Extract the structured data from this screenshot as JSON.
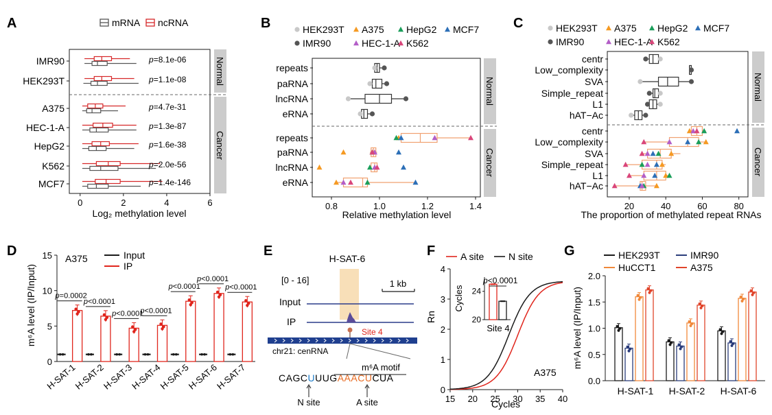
{
  "panel_letters": {
    "a": "A",
    "b": "B",
    "c": "C",
    "d": "D",
    "e": "E",
    "f": "F",
    "g": "G"
  },
  "colors": {
    "mrna": "#555555",
    "ncrna": "#d62728",
    "HEK293T": "#c8c8c8",
    "IMR90": "#555555",
    "A375": "#f59a23",
    "HEC-1-A": "#b35ec7",
    "HepG2": "#1a9e5a",
    "K562": "#d9467a",
    "MCF7": "#2c6fb7",
    "input": "#1a1a1a",
    "ip": "#e0251c",
    "a_site": "#e0251c",
    "n_site": "#1a1a1a",
    "HuCCT1": "#f0883a",
    "A375_g": "#e0442a",
    "IMR90_g": "#2a3c7a",
    "HEK293T_g": "#1a1a1a",
    "box_cancer": "#f0a070",
    "strip": "#cccccc",
    "highlight": "#f8dfb8",
    "track": "#2a3c8a"
  },
  "chart_data": [
    {
      "id": "A",
      "type": "box",
      "legend": [
        "mRNA",
        "ncRNA"
      ],
      "xlabel": "Log₂ methylation level",
      "xlim": [
        -0.5,
        6.0
      ],
      "xticks": [
        0,
        2,
        4,
        6
      ],
      "groups": [
        {
          "label": "Normal",
          "samples": [
            {
              "name": "IMR90",
              "p": "p=8.1e-06",
              "mrna": [
                0.2,
                0.55,
                0.8,
                1.25,
                2.6
              ],
              "ncrna": [
                0.2,
                0.65,
                1.0,
                1.45,
                2.3
              ]
            },
            {
              "name": "HEK293T",
              "p": "p=1.1e-08",
              "mrna": [
                0.15,
                0.5,
                0.8,
                1.25,
                2.7
              ],
              "ncrna": [
                0.2,
                0.65,
                1.0,
                1.45,
                2.5
              ]
            }
          ]
        },
        {
          "label": "Cancer",
          "samples": [
            {
              "name": "A375",
              "p": "p=4.7e-31",
              "mrna": [
                0.1,
                0.3,
                0.55,
                0.95,
                1.75
              ],
              "ncrna": [
                0.1,
                0.35,
                0.7,
                1.05,
                2.1
              ]
            },
            {
              "name": "HEC-1-A",
              "p": "p=1.3e-87",
              "mrna": [
                0.1,
                0.45,
                0.75,
                1.3,
                2.6
              ],
              "ncrna": [
                0.1,
                0.6,
                1.05,
                1.5,
                2.6
              ]
            },
            {
              "name": "HepG2",
              "p": "p=1.6e-38",
              "mrna": [
                0.1,
                0.4,
                0.75,
                1.2,
                2.5
              ],
              "ncrna": [
                0.1,
                0.55,
                0.95,
                1.35,
                2.7
              ]
            },
            {
              "name": "K562",
              "p": "p=2.0e-56",
              "mrna": [
                0.1,
                0.45,
                0.95,
                1.75,
                3.5
              ],
              "ncrna": [
                0.1,
                0.75,
                1.3,
                1.85,
                3.7
              ]
            },
            {
              "name": "MCF7",
              "p": "p=1.4e-146",
              "mrna": [
                0.1,
                0.35,
                0.75,
                1.3,
                2.8
              ],
              "ncrna": [
                0.1,
                0.7,
                1.2,
                1.85,
                3.8
              ]
            }
          ]
        }
      ]
    },
    {
      "id": "B",
      "type": "box+scatter",
      "legend": [
        "HEK293T",
        "A375",
        "HepG2",
        "MCF7",
        "IMR90",
        "HEC-1-A",
        "K562"
      ],
      "xlabel": "Relative methylation level",
      "xlim": [
        0.72,
        1.42
      ],
      "xticks": [
        0.8,
        1.0,
        1.2,
        1.4
      ],
      "groups": [
        {
          "label": "Normal",
          "categories": [
            "repeats",
            "paRNA",
            "lncRNA",
            "eRNA"
          ],
          "boxes": [
            [
              0.975,
              0.98,
              0.99,
              1.0,
              1.02
            ],
            [
              0.96,
              0.97,
              0.985,
              1.01,
              1.03
            ],
            [
              0.88,
              0.94,
              1.0,
              1.05,
              1.1
            ],
            [
              0.92,
              0.925,
              0.935,
              0.95,
              0.96
            ]
          ],
          "points": [
            {
              "HEK293T": 0.98,
              "IMR90": 1.02
            },
            {
              "HEK293T": 0.96,
              "IMR90": 1.03
            },
            {
              "HEK293T": 0.87,
              "IMR90": 1.11
            },
            {
              "HEK293T": 0.92,
              "IMR90": 0.97
            }
          ]
        },
        {
          "label": "Cancer",
          "categories": [
            "repeats",
            "paRNA",
            "lncRNA",
            "eRNA"
          ],
          "boxes": [
            [
              1.07,
              1.09,
              1.17,
              1.24,
              1.38
            ],
            [
              0.96,
              0.965,
              0.975,
              0.985,
              0.99
            ],
            [
              0.955,
              0.965,
              0.98,
              0.99,
              0.995
            ],
            [
              0.82,
              0.85,
              0.93,
              0.95,
              1.15
            ]
          ],
          "points": [
            {
              "A375": 1.08,
              "HepG2": 1.07,
              "MCF7": 1.09,
              "HEC-1-A": 1.23,
              "K562": 1.38
            },
            {
              "A375": 0.85,
              "HepG2": 0.97,
              "MCF7": 1.08,
              "HEC-1-A": 0.98,
              "K562": 0.97
            },
            {
              "A375": 0.75,
              "HepG2": 0.96,
              "MCF7": 1.1,
              "HEC-1-A": 0.98,
              "K562": 0.99
            },
            {
              "A375": 0.82,
              "HepG2": 0.95,
              "MCF7": 1.15,
              "HEC-1-A": 0.85,
              "K562": 0.88
            }
          ]
        }
      ]
    },
    {
      "id": "C",
      "type": "box+scatter",
      "legend": [
        "HEK293T",
        "A375",
        "HepG2",
        "MCF7",
        "IMR90",
        "HEC-1-A",
        "K562"
      ],
      "xlabel": "The proportion of methylated repeat RNAs",
      "xlim": [
        8,
        85
      ],
      "xticks": [
        20,
        40,
        60,
        80
      ],
      "groups": [
        {
          "label": "Normal",
          "categories": [
            "centr",
            "Low_complexity",
            "SVA",
            "Simple_repeat",
            "L1",
            "hAT−Ac"
          ],
          "boxes": [
            [
              30,
              31,
              33,
              36,
              38
            ],
            [
              53,
              53,
              53,
              54,
              54
            ],
            [
              26,
              36,
              41,
              47,
              54
            ],
            [
              31,
              33,
              34,
              36,
              38
            ],
            [
              30,
              31,
              33,
              35,
              38
            ],
            [
              22,
              23,
              25,
              27,
              29
            ]
          ],
          "points": [
            {
              "HEK293T": 37,
              "IMR90": 29
            },
            {
              "HEK293T": 54,
              "IMR90": 54
            },
            {
              "HEK293T": 26,
              "IMR90": 54
            },
            {
              "HEK293T": 37,
              "IMR90": 31
            },
            {
              "HEK293T": 37,
              "IMR90": 30
            },
            {
              "HEK293T": 21,
              "IMR90": 29
            }
          ]
        },
        {
          "label": "Cancer",
          "categories": [
            "centr",
            "Low_complexity",
            "SVA",
            "Simple_repeat",
            "L1",
            "hAT−Ac"
          ],
          "boxes": [
            [
              53,
              54,
              57,
              60,
              62
            ],
            [
              28,
              42,
              52,
              58,
              62
            ],
            [
              27,
              30,
              37,
              43,
              48
            ],
            [
              18,
              27,
              35,
              38,
              40
            ],
            [
              20,
              28,
              35,
              40,
              42
            ],
            [
              12,
              26,
              27,
              29,
              35
            ]
          ],
          "points": [
            {
              "A375": 53,
              "HepG2": 61,
              "MCF7": 79,
              "HEC-1-A": 55,
              "K562": 57
            },
            {
              "A375": 62,
              "HepG2": 58,
              "MCF7": 52,
              "HEC-1-A": 42,
              "K562": 28
            },
            {
              "A375": 43,
              "HepG2": 36,
              "MCF7": 33,
              "HEC-1-A": 30,
              "K562": 27
            },
            {
              "A375": 38,
              "HepG2": 27,
              "MCF7": 35,
              "HEC-1-A": 30,
              "K562": 18
            },
            {
              "A375": 40,
              "HepG2": 42,
              "MCF7": 34,
              "HEC-1-A": 28,
              "K562": 20
            },
            {
              "A375": 35,
              "HepG2": 28,
              "MCF7": 26,
              "HEC-1-A": 27,
              "K562": 12
            }
          ]
        }
      ]
    },
    {
      "id": "D",
      "type": "bar",
      "annotation": "A375",
      "legend": [
        "Input",
        "IP"
      ],
      "ylabel": "m⁶A level (IP/Input)",
      "ylim": [
        0,
        15
      ],
      "yticks": [
        0,
        5,
        10,
        15
      ],
      "categories": [
        "H-SAT-1",
        "H-SAT-2",
        "H-SAT-3",
        "H-SAT-4",
        "H-SAT-5",
        "H-SAT-6",
        "H-SAT-7"
      ],
      "series": [
        {
          "name": "Input",
          "values": [
            1.0,
            1.0,
            1.0,
            1.0,
            1.0,
            1.0,
            1.0
          ]
        },
        {
          "name": "IP",
          "values": [
            7.2,
            6.4,
            4.7,
            5.1,
            8.5,
            9.6,
            8.4
          ]
        }
      ],
      "significance": [
        "p=0.0002",
        "p<0.0001",
        "p<0.0001",
        "p<0.0001",
        "p<0.0001",
        "p<0.0001",
        "p<0.0001"
      ]
    },
    {
      "id": "F",
      "type": "line",
      "legend": [
        "A site",
        "N site"
      ],
      "xlabel": "Cycles",
      "ylabel": "Rn",
      "xlim": [
        15,
        40
      ],
      "ylim": [
        0,
        4
      ],
      "xticks": [
        15,
        20,
        25,
        30,
        35,
        40
      ],
      "yticks": [
        0,
        1,
        2,
        3,
        4
      ],
      "annotation": "A375",
      "series": [
        {
          "name": "A site",
          "midpoint": 30.0,
          "steepness": 0.42
        },
        {
          "name": "N site",
          "midpoint": 28.0,
          "steepness": 0.42
        }
      ],
      "plateau": 3.6,
      "inset": {
        "ylabel": "Cycles",
        "xlabel": "Site 4",
        "ylim": [
          20,
          26
        ],
        "yticks": [
          20,
          24
        ],
        "values": [
          25.0,
          22.6
        ],
        "p": "p<0.0001"
      }
    },
    {
      "id": "G",
      "type": "bar",
      "legend": [
        "HEK293T",
        "HuCCT1",
        "IMR90",
        "A375"
      ],
      "ylabel": "m⁶A level (IP/Input)",
      "ylim": [
        0,
        2.0
      ],
      "yticks": [
        0.0,
        0.5,
        1.0,
        1.5,
        2.0
      ],
      "categories": [
        "H-SAT-1",
        "H-SAT-2",
        "H-SAT-6"
      ],
      "series": [
        {
          "name": "HEK293T",
          "values": [
            1.01,
            0.74,
            0.95
          ]
        },
        {
          "name": "IMR90",
          "values": [
            0.62,
            0.66,
            0.72
          ]
        },
        {
          "name": "HuCCT1",
          "values": [
            1.6,
            1.1,
            1.57
          ]
        },
        {
          "name": "A375",
          "values": [
            1.73,
            1.44,
            1.69
          ]
        }
      ]
    }
  ],
  "panel_e": {
    "title": "H-SAT-6",
    "range": "[0 - 16]",
    "scale": "1 kb",
    "track_labels": [
      "Input",
      "IP"
    ],
    "site_label": "Site 4",
    "chrom_label": "chr21: cenRNA",
    "motif_title": "m⁶A motif",
    "sequence": [
      "CAGC",
      "U",
      "UUG",
      "AAACU",
      "CUA"
    ],
    "n_site": "N site",
    "a_site": "A site"
  }
}
